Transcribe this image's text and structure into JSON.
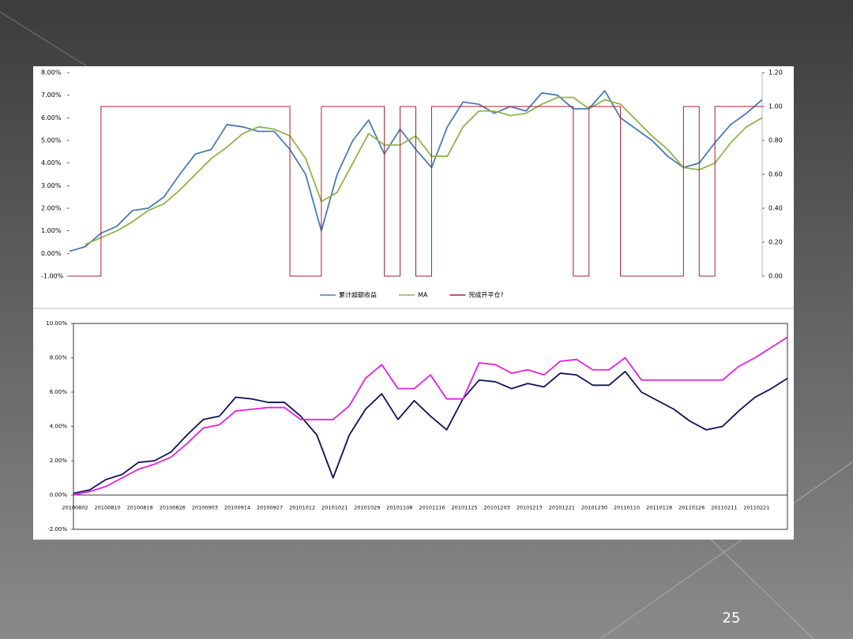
{
  "slide_number": "25",
  "chart_data": [
    {
      "type": "line",
      "series": [
        {
          "name": "累计超额收益",
          "color": "#4a7ab5",
          "values": [
            0.1,
            0.3,
            0.9,
            1.2,
            1.9,
            2.0,
            2.5,
            3.5,
            4.4,
            4.6,
            5.7,
            5.6,
            5.4,
            5.4,
            4.6,
            3.5,
            1.0,
            3.5,
            5.0,
            5.9,
            4.4,
            5.5,
            4.6,
            3.8,
            5.6,
            6.7,
            6.6,
            6.2,
            6.5,
            6.3,
            7.1,
            7.0,
            6.4,
            6.4,
            7.2,
            6.0,
            5.5,
            5.0,
            4.3,
            3.8,
            4.0,
            4.9,
            5.7,
            6.2,
            6.8
          ]
        },
        {
          "name": "MA",
          "color": "#8fb44a",
          "values": [
            null,
            0.4,
            0.7,
            1.0,
            1.4,
            1.9,
            2.2,
            2.8,
            3.5,
            4.2,
            4.7,
            5.3,
            5.6,
            5.5,
            5.2,
            4.2,
            2.3,
            2.7,
            4.0,
            5.3,
            4.8,
            4.8,
            5.2,
            4.3,
            4.3,
            5.6,
            6.3,
            6.3,
            6.1,
            6.2,
            6.6,
            6.9,
            6.9,
            6.4,
            6.8,
            6.6,
            5.9,
            5.2,
            4.6,
            3.8,
            3.7,
            4.0,
            4.9,
            5.6,
            6.0
          ]
        },
        {
          "name": "完成开平仓?",
          "color": "#a02030",
          "axis": "y2",
          "step": true,
          "values": [
            0,
            0,
            1,
            1,
            1,
            1,
            1,
            1,
            1,
            1,
            1,
            1,
            1,
            1,
            0,
            0,
            1,
            1,
            1,
            1,
            0,
            1,
            0,
            1,
            1,
            1,
            1,
            1,
            1,
            1,
            1,
            1,
            0,
            1,
            1,
            0,
            0,
            0,
            0,
            1,
            0,
            1,
            1,
            1,
            1
          ]
        }
      ],
      "ylim": [
        -1,
        8
      ],
      "yticks": [
        {
          "value": -1,
          "label": "-1.00%"
        },
        {
          "value": 0,
          "label": "0.00%"
        },
        {
          "value": 1,
          "label": "1.00%"
        },
        {
          "value": 2,
          "label": "2.00%"
        },
        {
          "value": 3,
          "label": "3.00%"
        },
        {
          "value": 4,
          "label": "4.00%"
        },
        {
          "value": 5,
          "label": "5.00%"
        },
        {
          "value": 6,
          "label": "6.00%"
        },
        {
          "value": 7,
          "label": "7.00%"
        },
        {
          "value": 8,
          "label": "8.00%"
        }
      ],
      "y2lim": [
        0,
        1.2
      ],
      "y2ticks": [
        {
          "value": 0,
          "label": "0.00"
        },
        {
          "value": 0.2,
          "label": "0.20"
        },
        {
          "value": 0.4,
          "label": "0.40"
        },
        {
          "value": 0.6,
          "label": "0.60"
        },
        {
          "value": 0.8,
          "label": "0.80"
        },
        {
          "value": 1,
          "label": "1.00"
        },
        {
          "value": 1.2,
          "label": "1.20"
        }
      ],
      "legend": "bottom"
    },
    {
      "type": "line",
      "categories": [
        "20100802",
        null,
        "20100810",
        null,
        "20100818",
        null,
        "20100826",
        null,
        "20100903",
        null,
        "20100914",
        null,
        "20100927",
        null,
        "20101012",
        null,
        "20101021",
        null,
        "20101029",
        null,
        "20101108",
        null,
        "20101116",
        null,
        "20101125",
        null,
        "20101203",
        null,
        "20101213",
        null,
        "20101221",
        null,
        "20101230",
        null,
        "20110110",
        null,
        "20110118",
        null,
        "20110126",
        null,
        "20110211",
        null,
        "20110221",
        null,
        null
      ],
      "series": [
        {
          "color": "#10105a",
          "values": [
            0.1,
            0.3,
            0.9,
            1.2,
            1.9,
            2.0,
            2.5,
            3.5,
            4.4,
            4.6,
            5.7,
            5.6,
            5.4,
            5.4,
            4.6,
            3.5,
            1.0,
            3.5,
            5.0,
            5.9,
            4.4,
            5.5,
            4.6,
            3.8,
            5.6,
            6.7,
            6.6,
            6.2,
            6.5,
            6.3,
            7.1,
            7.0,
            6.4,
            6.4,
            7.2,
            6.0,
            5.5,
            5.0,
            4.3,
            3.8,
            4.0,
            4.9,
            5.7,
            6.2,
            6.8
          ]
        },
        {
          "color": "#e020e0",
          "values": [
            0,
            0.2,
            0.5,
            1.0,
            1.5,
            1.8,
            2.2,
            3.0,
            3.9,
            4.1,
            4.9,
            5.0,
            5.1,
            5.1,
            4.4,
            4.4,
            4.4,
            5.2,
            6.8,
            7.6,
            6.2,
            6.2,
            7.0,
            5.6,
            5.6,
            7.7,
            7.6,
            7.1,
            7.3,
            7.0,
            7.8,
            7.9,
            7.3,
            7.3,
            8.0,
            6.7,
            6.7,
            6.7,
            6.7,
            6.7,
            6.7,
            7.5,
            8.0,
            8.6,
            9.2
          ]
        }
      ],
      "ylim": [
        -2,
        10
      ],
      "yticks": [
        {
          "value": -2,
          "label": "-2.00%"
        },
        {
          "value": 0,
          "label": "0.00%"
        },
        {
          "value": 2,
          "label": "2.00%"
        },
        {
          "value": 4,
          "label": "4.00%"
        },
        {
          "value": 6,
          "label": "6.00%"
        },
        {
          "value": 8,
          "label": "8.00%"
        },
        {
          "value": 10,
          "label": "10.00%"
        }
      ]
    }
  ]
}
